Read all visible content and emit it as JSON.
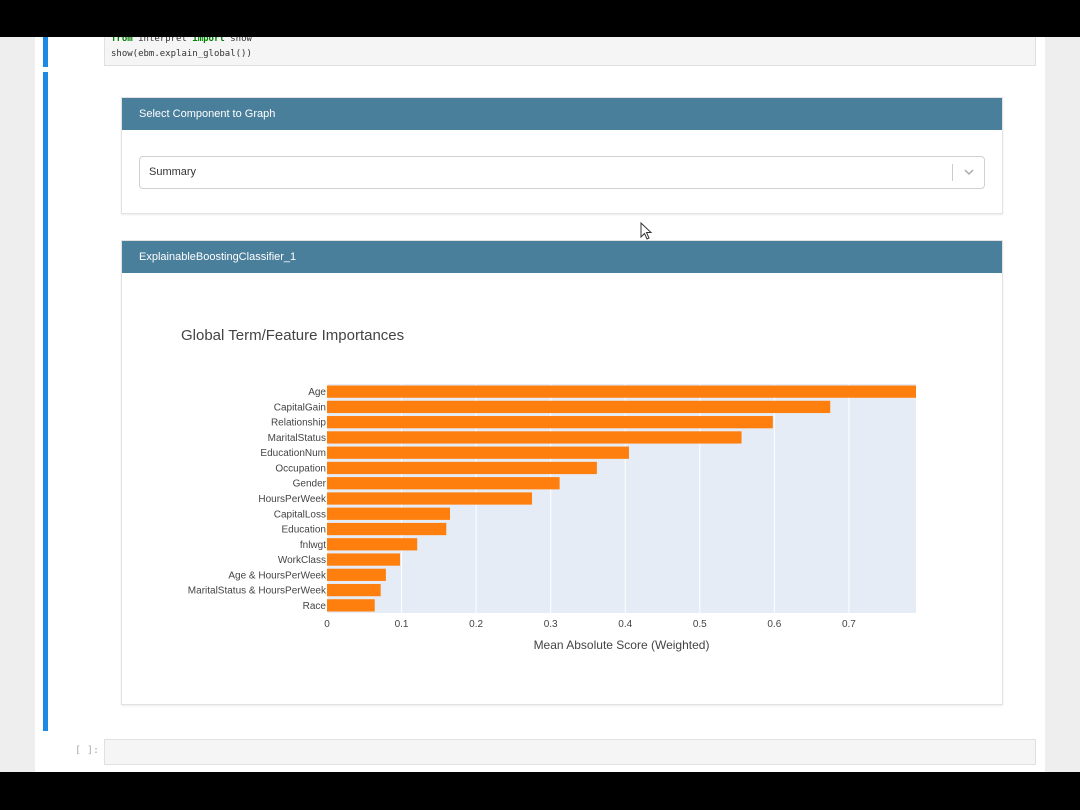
{
  "code": {
    "line1": {
      "kw1": "from",
      "mod": " interpret ",
      "kw2": "import",
      "name": " show"
    },
    "line2": "show(ebm.explain_global())"
  },
  "selector_panel": {
    "header": "Select Component to Graph",
    "selected": "Summary"
  },
  "explanation_panel": {
    "header": "ExplainableBoostingClassifier_1"
  },
  "chart_data": {
    "type": "bar",
    "orientation": "horizontal",
    "title": "Global Term/Feature Importances",
    "xlabel": "Mean Absolute Score (Weighted)",
    "xlim": [
      0,
      0.79
    ],
    "xticks": [
      "0",
      "0.1",
      "0.2",
      "0.3",
      "0.4",
      "0.5",
      "0.6",
      "0.7"
    ],
    "bar_color": "#ff7f0e",
    "grid": true,
    "categories": [
      "Age",
      "CapitalGain",
      "Relationship",
      "MaritalStatus",
      "EducationNum",
      "Occupation",
      "Gender",
      "HoursPerWeek",
      "CapitalLoss",
      "Education",
      "fnlwgt",
      "WorkClass",
      "Age & HoursPerWeek",
      "MaritalStatus & HoursPerWeek",
      "Race"
    ],
    "values": [
      0.79,
      0.675,
      0.598,
      0.556,
      0.405,
      0.362,
      0.312,
      0.275,
      0.165,
      0.16,
      0.121,
      0.098,
      0.079,
      0.072,
      0.064
    ]
  },
  "empty_cell": {
    "prompt": "[ ]:"
  }
}
